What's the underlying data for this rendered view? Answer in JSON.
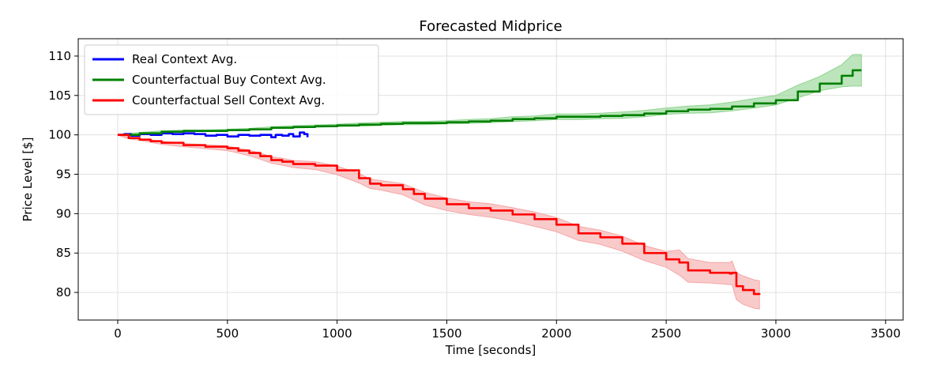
{
  "chart_data": {
    "type": "line",
    "title": "Forecasted Midprice",
    "xlabel": "Time [seconds]",
    "ylabel": "Price Level [$]",
    "xlim": [
      -180,
      3580
    ],
    "ylim": [
      76.5,
      112.2
    ],
    "xticks": [
      0,
      500,
      1000,
      1500,
      2000,
      2500,
      3000,
      3500
    ],
    "yticks": [
      80,
      85,
      90,
      95,
      100,
      105,
      110
    ],
    "grid": true,
    "legend_position": "top-left",
    "series": [
      {
        "name": "Real Context Avg.",
        "color": "#0000ff",
        "x": [
          0,
          30,
          60,
          100,
          150,
          200,
          250,
          300,
          350,
          400,
          450,
          500,
          550,
          600,
          650,
          700,
          720,
          750,
          780,
          800,
          830,
          850,
          865
        ],
        "y": [
          100.0,
          100.1,
          99.9,
          100.1,
          100.0,
          100.2,
          100.1,
          100.2,
          100.1,
          99.9,
          100.0,
          99.8,
          100.0,
          99.9,
          100.0,
          99.7,
          100.0,
          99.9,
          100.1,
          99.8,
          100.3,
          100.1,
          99.7
        ]
      },
      {
        "name": "Counterfactual Buy Context Avg.",
        "color": "#008000",
        "band_color": "#8fd48f",
        "x": [
          0,
          100,
          200,
          300,
          400,
          500,
          600,
          700,
          800,
          900,
          1000,
          1100,
          1200,
          1300,
          1400,
          1500,
          1600,
          1700,
          1800,
          1900,
          2000,
          2100,
          2200,
          2300,
          2400,
          2500,
          2600,
          2700,
          2800,
          2900,
          3000,
          3100,
          3200,
          3300,
          3350,
          3390
        ],
        "y": [
          100.0,
          100.2,
          100.4,
          100.5,
          100.5,
          100.6,
          100.7,
          100.9,
          101.0,
          101.1,
          101.2,
          101.3,
          101.4,
          101.5,
          101.5,
          101.6,
          101.7,
          101.8,
          102.0,
          102.1,
          102.3,
          102.3,
          102.4,
          102.5,
          102.7,
          103.0,
          103.2,
          103.3,
          103.6,
          104.0,
          104.4,
          105.5,
          106.5,
          107.5,
          108.2,
          108.2
        ],
        "band_halfwidth": [
          0.05,
          0.1,
          0.1,
          0.1,
          0.1,
          0.1,
          0.12,
          0.12,
          0.15,
          0.15,
          0.15,
          0.2,
          0.2,
          0.2,
          0.2,
          0.2,
          0.25,
          0.25,
          0.3,
          0.3,
          0.35,
          0.35,
          0.35,
          0.4,
          0.4,
          0.4,
          0.45,
          0.5,
          0.55,
          0.6,
          0.6,
          0.8,
          0.9,
          1.4,
          2.0,
          2.0
        ]
      },
      {
        "name": "Counterfactual Sell Context Avg.",
        "color": "#ff0000",
        "band_color": "#f5a6a6",
        "x": [
          0,
          50,
          100,
          150,
          200,
          300,
          400,
          500,
          550,
          600,
          650,
          700,
          750,
          800,
          900,
          1000,
          1100,
          1150,
          1200,
          1300,
          1350,
          1400,
          1500,
          1600,
          1700,
          1800,
          1900,
          2000,
          2100,
          2200,
          2300,
          2400,
          2500,
          2560,
          2600,
          2700,
          2790,
          2800,
          2820,
          2850,
          2900,
          2925
        ],
        "y": [
          100.0,
          99.6,
          99.4,
          99.2,
          99.0,
          98.7,
          98.5,
          98.3,
          98.0,
          97.7,
          97.3,
          96.8,
          96.6,
          96.3,
          96.1,
          95.5,
          94.5,
          93.8,
          93.6,
          93.1,
          92.5,
          91.9,
          91.2,
          90.7,
          90.4,
          89.9,
          89.3,
          88.6,
          87.5,
          87.0,
          86.2,
          85.0,
          84.2,
          83.8,
          82.8,
          82.5,
          82.4,
          82.5,
          80.8,
          80.3,
          79.8,
          79.7
        ],
        "band_halfwidth": [
          0.05,
          0.1,
          0.1,
          0.15,
          0.2,
          0.2,
          0.25,
          0.3,
          0.3,
          0.35,
          0.4,
          0.4,
          0.45,
          0.45,
          0.5,
          0.55,
          0.6,
          0.6,
          0.6,
          0.7,
          0.75,
          0.8,
          0.8,
          0.8,
          0.85,
          0.85,
          0.9,
          0.9,
          0.9,
          0.9,
          0.95,
          0.95,
          1.0,
          1.6,
          1.5,
          1.3,
          1.4,
          1.5,
          1.7,
          1.8,
          1.8,
          1.8
        ]
      }
    ]
  }
}
